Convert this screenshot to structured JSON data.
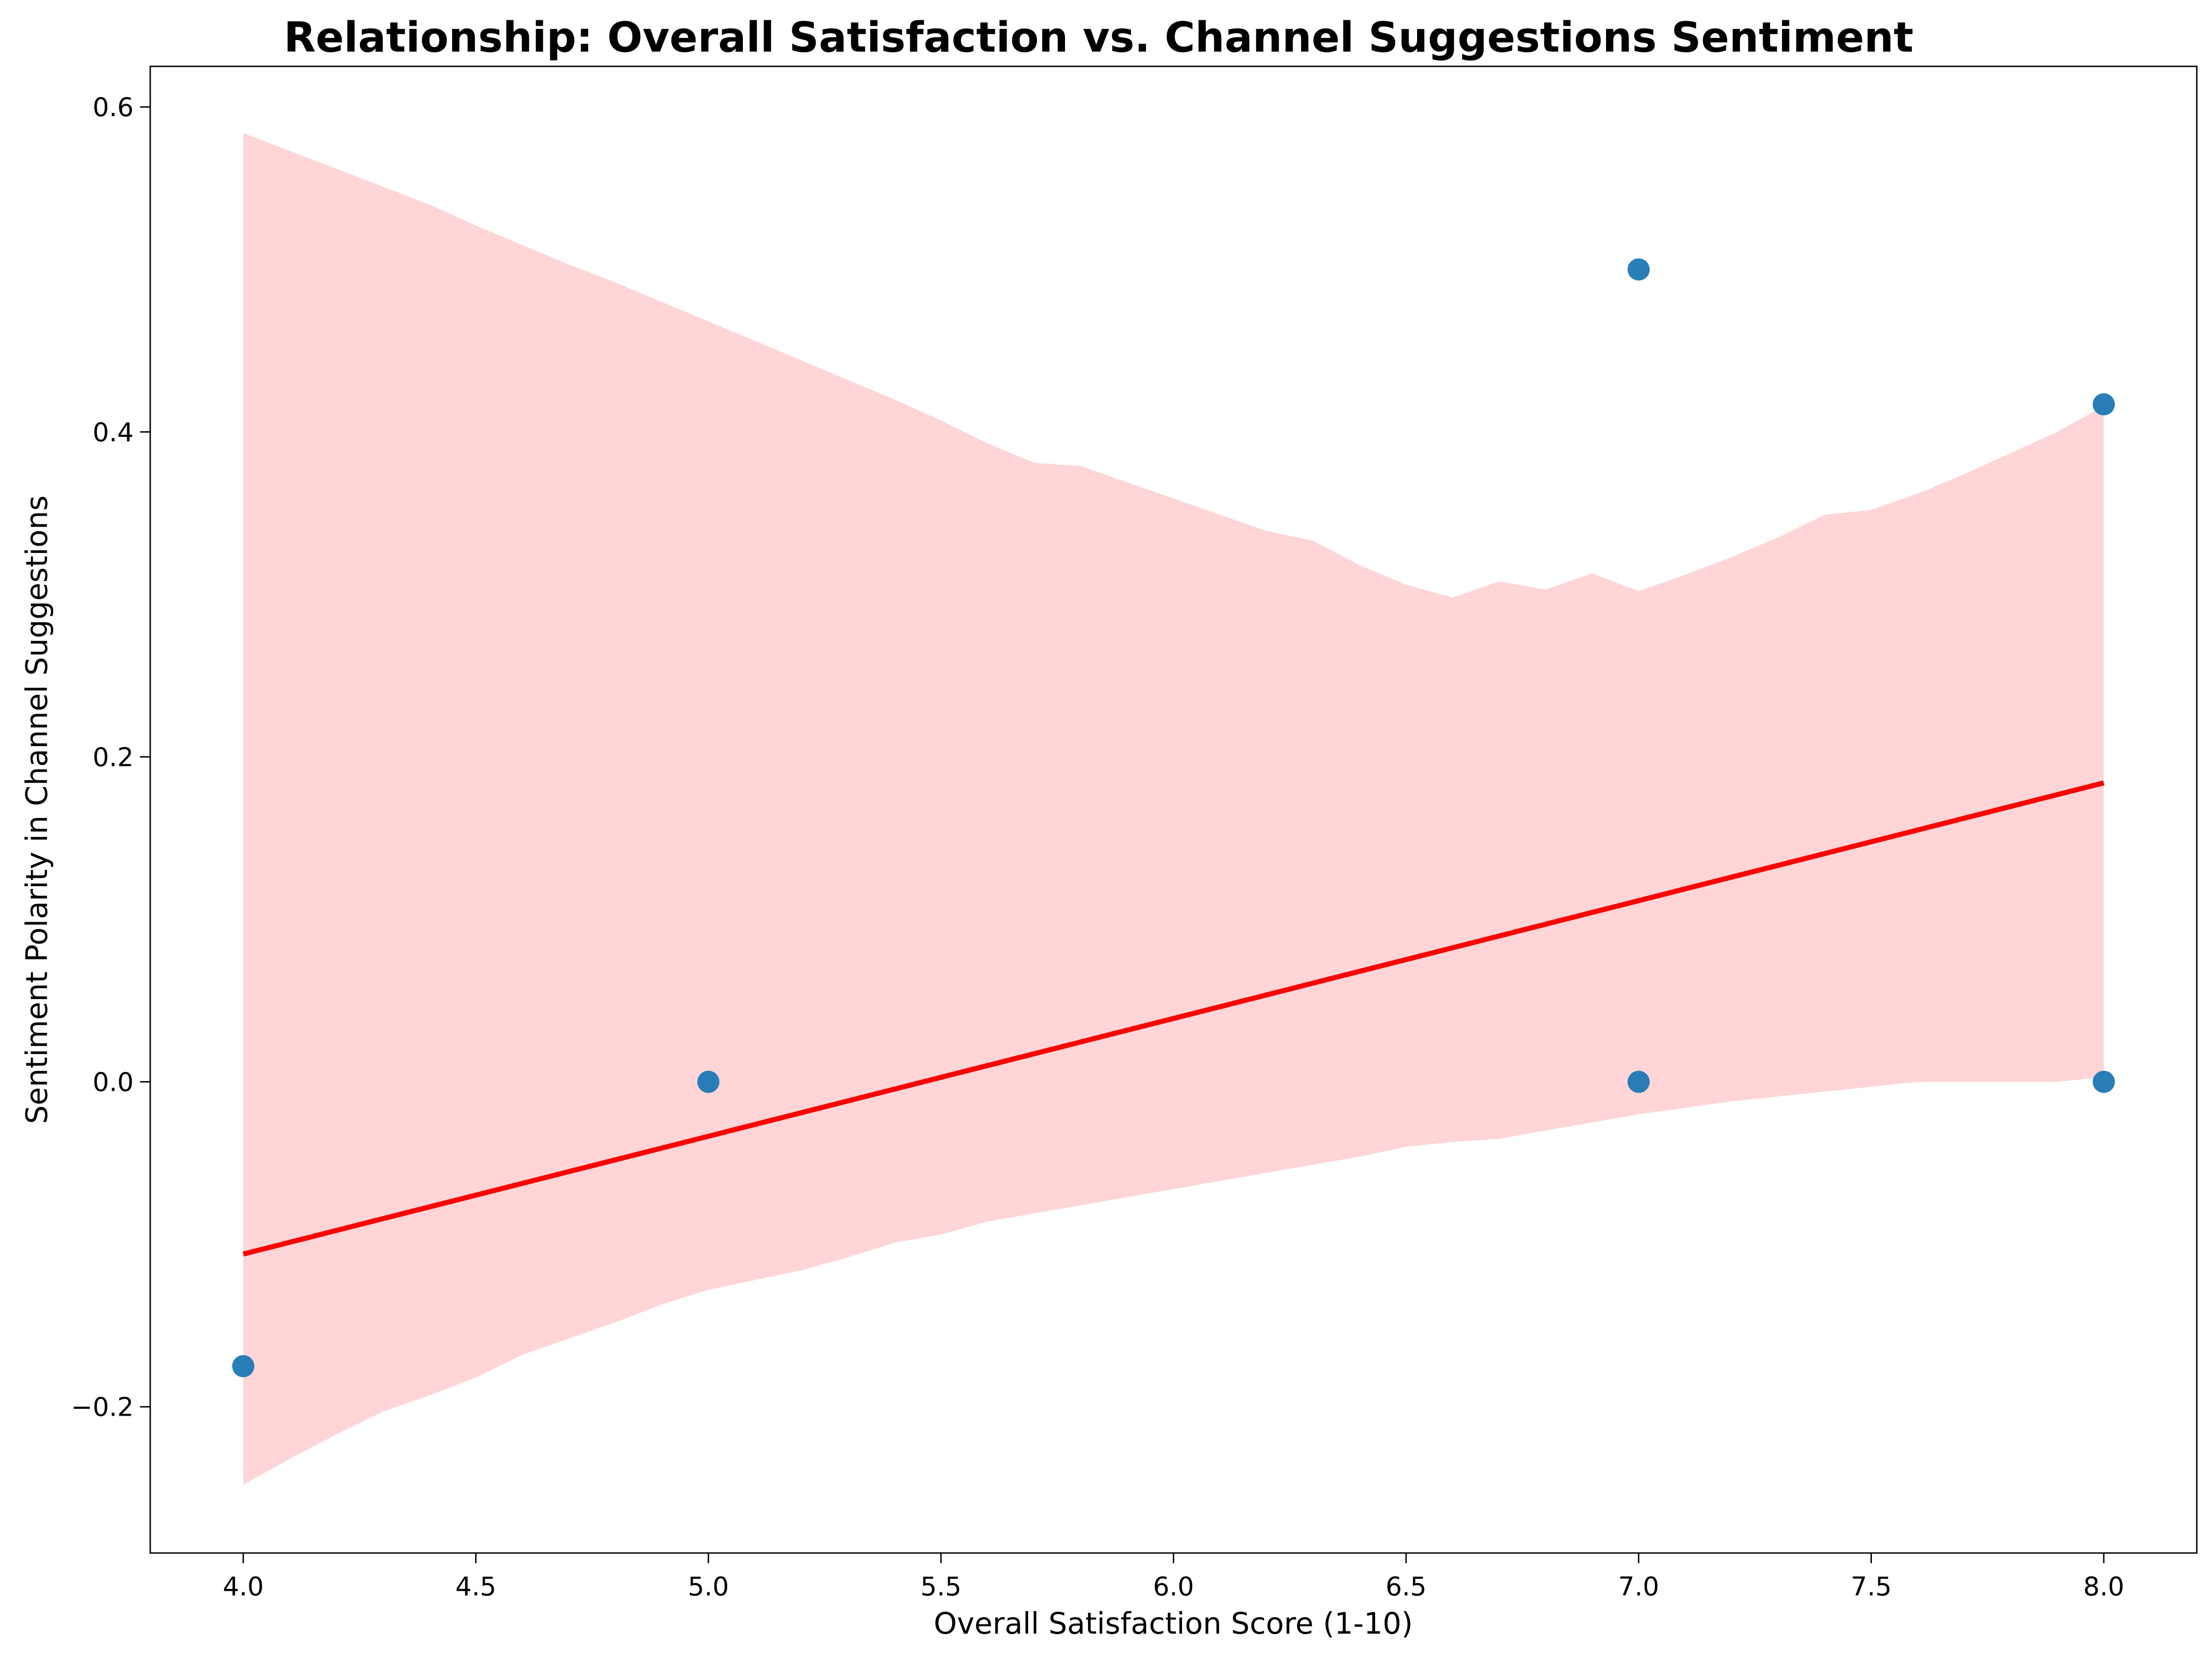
{
  "chart_data": {
    "type": "scatter",
    "title": "Relationship: Overall Satisfaction vs. Channel Suggestions Sentiment",
    "xlabel": "Overall Satisfaction Score (1-10)",
    "ylabel": "Sentiment Polarity in Channel Suggestions",
    "xlim": [
      3.8,
      8.2
    ],
    "ylim": [
      -0.29,
      0.625
    ],
    "xticks": [
      4.0,
      4.5,
      5.0,
      5.5,
      6.0,
      6.5,
      7.0,
      7.5,
      8.0
    ],
    "xtick_labels": [
      "4.0",
      "4.5",
      "5.0",
      "5.5",
      "6.0",
      "6.5",
      "7.0",
      "7.5",
      "8.0"
    ],
    "yticks": [
      -0.2,
      0.0,
      0.2,
      0.4,
      0.6
    ],
    "ytick_labels": [
      "−0.2",
      "0.0",
      "0.2",
      "0.4",
      "0.6"
    ],
    "grid": false,
    "points": [
      {
        "x": 4.0,
        "y": -0.175
      },
      {
        "x": 5.0,
        "y": 0.0
      },
      {
        "x": 7.0,
        "y": 0.5
      },
      {
        "x": 7.0,
        "y": 0.0
      },
      {
        "x": 8.0,
        "y": 0.417
      },
      {
        "x": 8.0,
        "y": 0.0
      }
    ],
    "point_color": "#1f77b4",
    "regression": {
      "x": [
        4.0,
        8.0
      ],
      "y": [
        -0.106,
        0.184
      ],
      "color": "#ff0000"
    },
    "confidence_band": {
      "color": "#ffb3b8",
      "x": [
        4.0,
        4.1,
        4.2,
        4.3,
        4.4,
        4.5,
        4.6,
        4.7,
        4.8,
        4.9,
        5.0,
        5.1,
        5.2,
        5.3,
        5.4,
        5.5,
        5.6,
        5.7,
        5.8,
        5.9,
        6.0,
        6.1,
        6.2,
        6.3,
        6.4,
        6.5,
        6.6,
        6.7,
        6.8,
        6.9,
        7.0,
        7.1,
        7.2,
        7.3,
        7.4,
        7.5,
        7.6,
        7.7,
        7.8,
        7.9,
        8.0
      ],
      "upper": [
        0.584,
        0.573,
        0.562,
        0.551,
        0.54,
        0.527,
        0.515,
        0.503,
        0.492,
        0.48,
        0.468,
        0.456,
        0.444,
        0.432,
        0.42,
        0.407,
        0.393,
        0.381,
        0.379,
        0.369,
        0.359,
        0.349,
        0.339,
        0.333,
        0.318,
        0.306,
        0.298,
        0.308,
        0.303,
        0.313,
        0.302,
        0.312,
        0.323,
        0.335,
        0.349,
        0.352,
        0.362,
        0.374,
        0.387,
        0.4,
        0.416
      ],
      "lower": [
        -0.248,
        -0.232,
        -0.217,
        -0.203,
        -0.193,
        -0.182,
        -0.168,
        -0.158,
        -0.148,
        -0.137,
        -0.128,
        -0.122,
        -0.116,
        -0.108,
        -0.099,
        -0.094,
        -0.086,
        -0.081,
        -0.076,
        -0.071,
        -0.066,
        -0.061,
        -0.056,
        -0.051,
        -0.046,
        -0.04,
        -0.037,
        -0.035,
        -0.03,
        -0.025,
        -0.02,
        -0.016,
        -0.012,
        -0.009,
        -0.006,
        -0.003,
        0.0,
        0.0,
        0.0,
        0.0,
        0.003
      ]
    }
  }
}
